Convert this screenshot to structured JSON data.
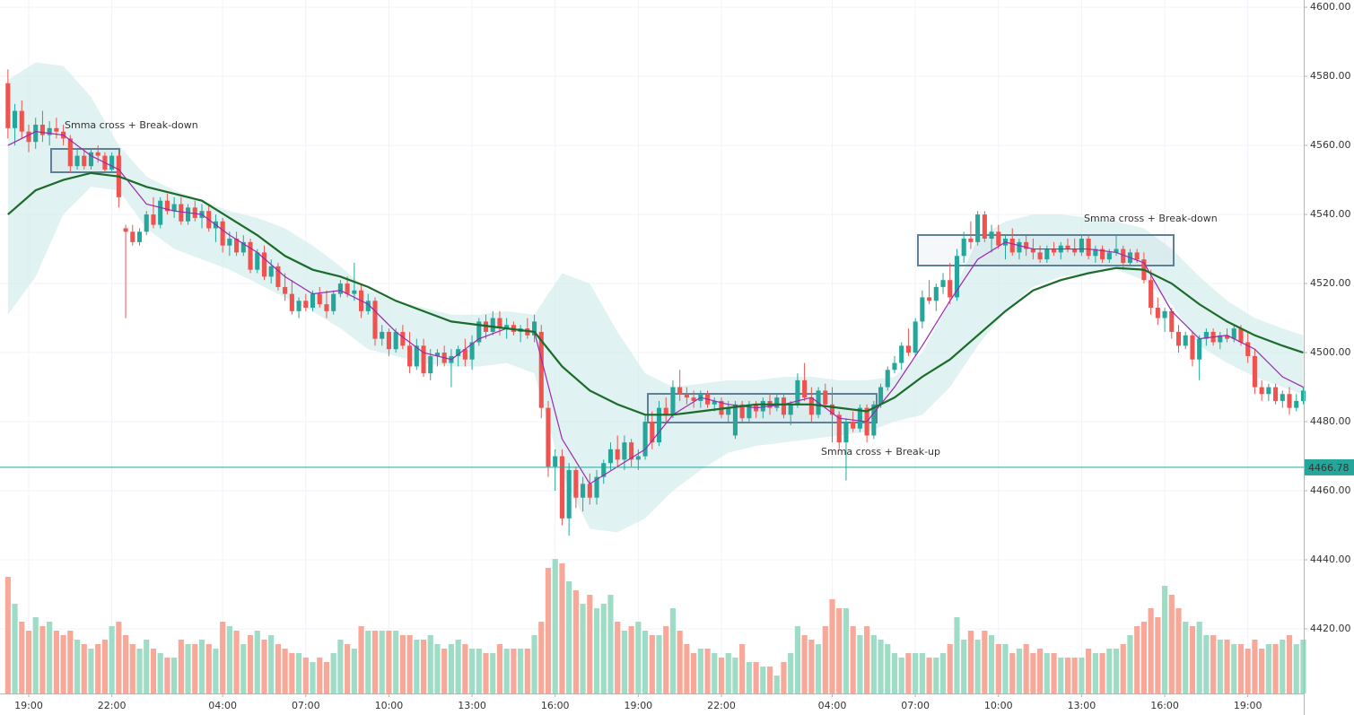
{
  "chart_data": {
    "type": "candlestick",
    "open": [
      4578,
      4565,
      4570,
      4564,
      4561,
      4566,
      4563,
      4565,
      4564,
      4562,
      4554,
      4557,
      4554,
      4558,
      4557,
      4553,
      4557,
      4536,
      4535,
      4532,
      4535,
      4540,
      4537,
      4544,
      4541,
      4543,
      4538,
      4542,
      4539,
      4541,
      4536,
      4538,
      4531,
      4533,
      4529,
      4532,
      4524,
      4529,
      4522,
      4525,
      4519,
      4517,
      4512,
      4515,
      4513,
      4517,
      4514,
      4512,
      4517,
      4520,
      4517,
      4518,
      4512,
      4515,
      4504,
      4506,
      4501,
      4506,
      4502,
      4496,
      4502,
      4494,
      4499,
      4500,
      4497,
      4499,
      4501,
      4498,
      4503,
      4509,
      4506,
      4510,
      4507,
      4508,
      4506,
      4507,
      4505,
      4506,
      4484,
      4467,
      4470,
      4452,
      4466,
      4458,
      4462,
      4458,
      4464,
      4468,
      4472,
      4469,
      4474,
      4469,
      4470,
      4480,
      4474,
      4484,
      4482,
      4490,
      4488,
      4487,
      4486,
      4488,
      4485,
      4486,
      4482,
      4476,
      4485,
      4481,
      4485,
      4483,
      4486,
      4484,
      4487,
      4482,
      4485,
      4492,
      4487,
      4482,
      4489,
      4485,
      4482,
      4474,
      4480,
      4478,
      4484,
      4476,
      4485,
      4490,
      4495,
      4497,
      4502,
      4500,
      4509,
      4516,
      4515,
      4519,
      4521,
      4516,
      4528,
      4533,
      4532,
      4540,
      4533,
      4535,
      4531,
      4533,
      4529,
      4532,
      4530,
      4529,
      4527,
      4530,
      4529,
      4531,
      4530,
      4529,
      4533,
      4528,
      4530,
      4527,
      4529,
      4530,
      4526,
      4529,
      4527,
      4521,
      4513,
      4510,
      4512,
      4506,
      4502,
      4505,
      4498,
      4504,
      4506,
      4503,
      4505,
      4504,
      4507,
      4503,
      4499,
      4490,
      4488,
      4490,
      4486,
      4488,
      4484,
      4486
    ],
    "high": [
      4582,
      4572,
      4573,
      4566,
      4568,
      4570,
      4567,
      4568,
      4566,
      4563,
      4559,
      4559,
      4559,
      4560,
      4558,
      4558,
      4558,
      4537,
      4537,
      4536,
      4541,
      4545,
      4545,
      4546,
      4545,
      4545,
      4543,
      4544,
      4543,
      4543,
      4540,
      4539,
      4535,
      4535,
      4534,
      4533,
      4530,
      4531,
      4527,
      4526,
      4523,
      4521,
      4516,
      4517,
      4518,
      4519,
      4518,
      4518,
      4521,
      4522,
      4526,
      4520,
      4517,
      4516,
      4508,
      4507,
      4507,
      4508,
      4506,
      4504,
      4504,
      4501,
      4501,
      4502,
      4501,
      4502,
      4504,
      4505,
      4510,
      4511,
      4512,
      4512,
      4510,
      4509,
      4508,
      4510,
      4511,
      4508,
      4486,
      4472,
      4472,
      4468,
      4467,
      4464,
      4465,
      4466,
      4469,
      4474,
      4476,
      4476,
      4475,
      4472,
      4482,
      4483,
      4486,
      4487,
      4492,
      4495,
      4490,
      4489,
      4489,
      4489,
      4487,
      4487,
      4486,
      4486,
      4486,
      4486,
      4486,
      4487,
      4488,
      4488,
      4488,
      4486,
      4494,
      4497,
      4490,
      4490,
      4491,
      4490,
      4483,
      4481,
      4483,
      4485,
      4485,
      4486,
      4491,
      4496,
      4499,
      4503,
      4507,
      4510,
      4518,
      4521,
      4520,
      4523,
      4526,
      4530,
      4535,
      4538,
      4541,
      4541,
      4537,
      4537,
      4534,
      4536,
      4533,
      4534,
      4533,
      4531,
      4531,
      4532,
      4532,
      4533,
      4533,
      4534,
      4534,
      4531,
      4531,
      4530,
      4534,
      4531,
      4530,
      4530,
      4529,
      4524,
      4516,
      4513,
      4513,
      4508,
      4506,
      4506,
      4505,
      4507,
      4507,
      4506,
      4507,
      4508,
      4508,
      4506,
      4501,
      4492,
      4491,
      4491,
      4489,
      4490,
      4488,
      4490
    ],
    "low": [
      4562,
      4560,
      4562,
      4558,
      4559,
      4561,
      4560,
      4562,
      4560,
      4552,
      4553,
      4553,
      4553,
      4555,
      4552,
      4552,
      4542,
      4510,
      4531,
      4531,
      4534,
      4536,
      4536,
      4540,
      4539,
      4537,
      4537,
      4538,
      4536,
      4535,
      4532,
      4529,
      4528,
      4528,
      4528,
      4523,
      4523,
      4521,
      4520,
      4518,
      4515,
      4511,
      4510,
      4512,
      4512,
      4513,
      4510,
      4511,
      4516,
      4516,
      4515,
      4510,
      4511,
      4502,
      4502,
      4499,
      4500,
      4501,
      4494,
      4495,
      4493,
      4492,
      4496,
      4496,
      4490,
      4496,
      4496,
      4495,
      4502,
      4504,
      4505,
      4505,
      4504,
      4505,
      4503,
      4504,
      4503,
      4481,
      4464,
      4460,
      4450,
      4447,
      4455,
      4454,
      4456,
      4456,
      4462,
      4466,
      4467,
      4466,
      4467,
      4466,
      4469,
      4472,
      4473,
      4480,
      4481,
      4486,
      4485,
      4484,
      4484,
      4484,
      4483,
      4481,
      4480,
      4475,
      4480,
      4480,
      4481,
      4481,
      4482,
      4483,
      4481,
      4479,
      4484,
      4486,
      4480,
      4481,
      4484,
      4474,
      4472,
      4463,
      4477,
      4477,
      4474,
      4475,
      4484,
      4489,
      4494,
      4495,
      4499,
      4499,
      4507,
      4514,
      4512,
      4517,
      4514,
      4515,
      4526,
      4530,
      4531,
      4532,
      4529,
      4530,
      4527,
      4528,
      4527,
      4528,
      4527,
      4526,
      4526,
      4528,
      4527,
      4529,
      4528,
      4528,
      4527,
      4526,
      4526,
      4526,
      4528,
      4524,
      4525,
      4526,
      4520,
      4511,
      4508,
      4506,
      4504,
      4500,
      4501,
      4496,
      4492,
      4502,
      4502,
      4501,
      4503,
      4503,
      4502,
      4497,
      4488,
      4486,
      4486,
      4485,
      4484,
      4482,
      4483,
      4485
    ],
    "close": [
      4565,
      4570,
      4564,
      4561,
      4566,
      4563,
      4565,
      4564,
      4562,
      4554,
      4557,
      4554,
      4558,
      4557,
      4553,
      4557,
      4545,
      4535,
      4532,
      4535,
      4540,
      4537,
      4544,
      4541,
      4543,
      4538,
      4542,
      4539,
      4541,
      4536,
      4538,
      4531,
      4533,
      4529,
      4532,
      4524,
      4529,
      4522,
      4525,
      4519,
      4517,
      4512,
      4515,
      4513,
      4517,
      4514,
      4512,
      4517,
      4520,
      4517,
      4518,
      4512,
      4515,
      4504,
      4506,
      4501,
      4506,
      4502,
      4496,
      4502,
      4494,
      4499,
      4500,
      4497,
      4499,
      4501,
      4498,
      4503,
      4509,
      4506,
      4510,
      4507,
      4508,
      4506,
      4507,
      4505,
      4509,
      4484,
      4467,
      4470,
      4452,
      4466,
      4458,
      4462,
      4458,
      4464,
      4468,
      4472,
      4469,
      4474,
      4469,
      4470,
      4480,
      4474,
      4484,
      4482,
      4490,
      4488,
      4487,
      4486,
      4488,
      4485,
      4486,
      4482,
      4484,
      4485,
      4481,
      4485,
      4483,
      4486,
      4484,
      4487,
      4482,
      4485,
      4492,
      4487,
      4482,
      4489,
      4485,
      4482,
      4474,
      4480,
      4478,
      4484,
      4476,
      4485,
      4490,
      4495,
      4497,
      4502,
      4500,
      4509,
      4516,
      4515,
      4519,
      4521,
      4516,
      4528,
      4533,
      4532,
      4540,
      4533,
      4535,
      4531,
      4533,
      4529,
      4532,
      4530,
      4529,
      4527,
      4530,
      4529,
      4531,
      4530,
      4529,
      4533,
      4528,
      4530,
      4527,
      4529,
      4530,
      4526,
      4529,
      4527,
      4521,
      4513,
      4510,
      4512,
      4506,
      4502,
      4505,
      4498,
      4504,
      4506,
      4503,
      4505,
      4504,
      4507,
      4503,
      4499,
      4490,
      4488,
      4490,
      4486,
      4488,
      4484,
      4486,
      4489
    ],
    "volume": [
      130,
      100,
      80,
      70,
      85,
      75,
      80,
      70,
      65,
      70,
      60,
      55,
      50,
      55,
      60,
      75,
      80,
      65,
      55,
      50,
      60,
      50,
      45,
      40,
      40,
      60,
      55,
      55,
      60,
      55,
      50,
      80,
      75,
      70,
      55,
      65,
      70,
      60,
      65,
      55,
      50,
      45,
      45,
      40,
      35,
      40,
      35,
      45,
      60,
      55,
      50,
      75,
      70,
      70,
      70,
      70,
      70,
      65,
      65,
      60,
      60,
      65,
      55,
      50,
      55,
      60,
      55,
      50,
      50,
      45,
      45,
      55,
      50,
      50,
      50,
      50,
      65,
      80,
      140,
      150,
      145,
      125,
      115,
      100,
      110,
      95,
      100,
      110,
      80,
      70,
      75,
      80,
      70,
      65,
      65,
      75,
      95,
      70,
      55,
      45,
      50,
      50,
      45,
      40,
      45,
      40,
      55,
      35,
      35,
      30,
      30,
      20,
      35,
      45,
      75,
      65,
      60,
      55,
      75,
      105,
      95,
      95,
      75,
      65,
      75,
      65,
      60,
      55,
      45,
      40,
      45,
      45,
      45,
      40,
      40,
      45,
      55,
      85,
      60,
      70,
      60,
      70,
      65,
      55,
      55,
      45,
      50,
      55,
      45,
      50,
      45,
      45,
      40,
      40,
      40,
      40,
      50,
      45,
      45,
      50,
      50,
      55,
      65,
      75,
      80,
      95,
      85,
      120,
      110,
      95,
      80,
      75,
      80,
      65,
      65,
      60,
      60,
      55,
      55,
      50,
      60,
      50,
      55,
      55,
      60,
      65,
      55,
      60
    ],
    "up_color": "#26a69a",
    "down_color": "#ef5350",
    "volume_up_color": "#9fdcc6",
    "volume_down_color": "#f8a898",
    "volume_ylim": [
      0,
      200
    ],
    "xlim": [
      -1.145,
      187.07
    ],
    "xticks": [
      {
        "value": 3,
        "label": "19:00"
      },
      {
        "value": 15,
        "label": "22:00"
      },
      {
        "value": 31,
        "label": "04:00"
      },
      {
        "value": 43,
        "label": "07:00"
      },
      {
        "value": 55,
        "label": "10:00"
      },
      {
        "value": 67,
        "label": "13:00"
      },
      {
        "value": 79,
        "label": "16:00"
      },
      {
        "value": 91,
        "label": "19:00"
      },
      {
        "value": 103,
        "label": "22:00"
      },
      {
        "value": 119,
        "label": "04:00"
      },
      {
        "value": 131,
        "label": "07:00"
      },
      {
        "value": 143,
        "label": "10:00"
      },
      {
        "value": 155,
        "label": "13:00"
      },
      {
        "value": 167,
        "label": "16:00"
      },
      {
        "value": 179,
        "label": "19:00"
      }
    ],
    "ylim": [
      4401.3,
      4602.1
    ],
    "yticks": [
      {
        "value": 4420,
        "label": "4420.00"
      },
      {
        "value": 4440,
        "label": "4440.00"
      },
      {
        "value": 4460,
        "label": "4460.00"
      },
      {
        "value": 4480,
        "label": "4480.00"
      },
      {
        "value": 4500,
        "label": "4500.00"
      },
      {
        "value": 4520,
        "label": "4520.00"
      },
      {
        "value": 4540,
        "label": "4540.00"
      },
      {
        "value": 4560,
        "label": "4560.00"
      },
      {
        "value": 4580,
        "label": "4580.00"
      },
      {
        "value": 4600,
        "label": "4600.00"
      }
    ],
    "grid": true,
    "indicator_x": [
      0,
      4,
      8,
      12,
      16,
      20,
      24,
      28,
      32,
      36,
      40,
      44,
      48,
      52,
      56,
      60,
      64,
      68,
      72,
      76,
      80,
      84,
      88,
      92,
      96,
      100,
      104,
      108,
      112,
      116,
      120,
      124,
      128,
      132,
      136,
      140,
      144,
      148,
      152,
      156,
      160,
      164,
      168,
      172,
      176,
      180,
      184,
      187
    ],
    "band": {
      "color": "#d5eeec",
      "upper": [
        4579,
        4584,
        4583,
        4574,
        4560,
        4551,
        4547,
        4544,
        4541,
        4539,
        4536,
        4531,
        4525,
        4518,
        4515,
        4513,
        4511,
        4511,
        4512,
        4511,
        4523,
        4520,
        4506,
        4494,
        4490,
        4491,
        4492,
        4492,
        4493,
        4493,
        4492,
        4492,
        4493,
        4500,
        4515,
        4533,
        4538,
        4540,
        4540,
        4539,
        4538,
        4536,
        4530,
        4522,
        4515,
        4510,
        4507,
        4505
      ],
      "lower": [
        4511,
        4522,
        4540,
        4548,
        4547,
        4536,
        4530,
        4527,
        4524,
        4520,
        4516,
        4512,
        4507,
        4501,
        4499,
        4497,
        4496,
        4496,
        4497,
        4494,
        4465,
        4449,
        4448,
        4452,
        4460,
        4466,
        4471,
        4473,
        4474,
        4475,
        4476,
        4477,
        4480,
        4482,
        4490,
        4502,
        4512,
        4519,
        4522,
        4523,
        4524,
        4521,
        4514,
        4502,
        4497,
        4493,
        4490,
        4488
      ]
    },
    "lines": [
      {
        "color": "#9c27b0",
        "values": [
          4560,
          4564,
          4563,
          4557,
          4553,
          4543,
          4541,
          4540,
          4534,
          4529,
          4522,
          4517,
          4518,
          4514,
          4506,
          4500,
          4498,
          4504,
          4507,
          4506,
          4475,
          4462,
          4467,
          4472,
          4482,
          4487,
          4485,
          4484,
          4485,
          4487,
          4481,
          4480,
          4490,
          4502,
          4515,
          4527,
          4532,
          4530,
          4530,
          4530,
          4529,
          4526,
          4512,
          4504,
          4505,
          4501,
          4493,
          4490
        ]
      },
      {
        "color": "#1b6b2a",
        "values": [
          4540,
          4547,
          4550,
          4552,
          4551,
          4548,
          4546,
          4544,
          4539,
          4534,
          4528,
          4524,
          4522,
          4519,
          4515,
          4512,
          4509,
          4508,
          4507,
          4506,
          4496,
          4489,
          4485,
          4482,
          4482,
          4483,
          4484,
          4485,
          4485,
          4485,
          4484,
          4483,
          4487,
          4493,
          4498,
          4505,
          4512,
          4518,
          4521,
          4523,
          4524.5,
          4524,
          4520,
          4514,
          4509,
          4505,
          4502,
          4500
        ]
      }
    ],
    "price_line": {
      "value": 4466.78,
      "color": "#26a69a"
    },
    "annotations": [
      {
        "text": "Smma cross + Break-down",
        "color": "#e53935"
      },
      {
        "text": "Smma cross + Break-down",
        "color": "#e53935"
      },
      {
        "text": "Smma cross + Break-up",
        "color": "#27b34a"
      }
    ]
  }
}
